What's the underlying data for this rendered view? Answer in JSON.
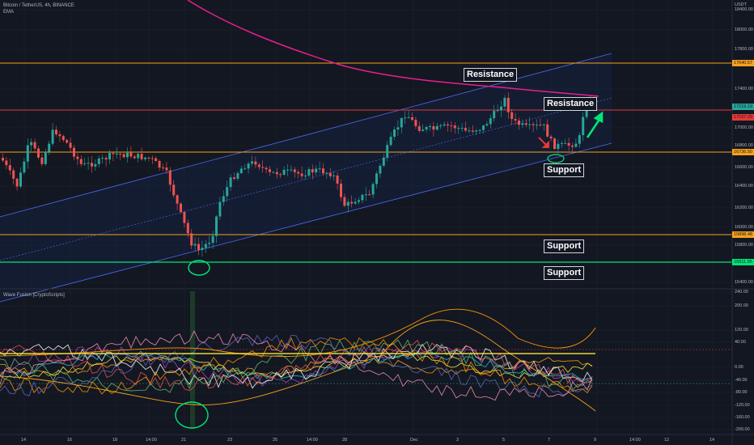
{
  "header": {
    "symbol": "Bitcoin / TetherUS, 4h, BINANCE",
    "ema_label": "EMA",
    "indicator_title": "Wave Fusion [CryptoScripts]"
  },
  "currency": "USDT",
  "annotations": {
    "resistance_top": "Resistance",
    "resistance_right": "Resistance",
    "support_right": "Support",
    "support_mid": "Support",
    "support_low": "Support"
  },
  "price_tags": [
    {
      "text": "17640.57",
      "color": "#f7a21b"
    },
    {
      "text": "17219.19",
      "color": "#26a69a"
    },
    {
      "text": "17167.29",
      "color": "#e53935"
    },
    {
      "text": "16736.50",
      "color": "#f7a21b"
    },
    {
      "text": "15898.48",
      "color": "#f7a21b"
    },
    {
      "text": "15611.95",
      "color": "#00e676"
    }
  ],
  "y_ticks_main": [
    "18400.00",
    "18000.00",
    "17800.00",
    "17400.00",
    "17000.00",
    "16800.00",
    "16600.00",
    "16400.00",
    "16200.00",
    "16000.00",
    "15800.00",
    "15400.00"
  ],
  "y_ticks_osc": [
    "240.00",
    "200.00",
    "120.00",
    "40.00",
    "0.00",
    "-40.00",
    "-80.00",
    "-120.00",
    "-160.00",
    "-200.00"
  ],
  "x_ticks": [
    "14",
    "16",
    "18",
    "14:00",
    "21",
    "23",
    "25",
    "14:00",
    "28",
    "Dec",
    "3",
    "5",
    "7",
    "9",
    "14:00",
    "12",
    "14"
  ],
  "colors": {
    "background": "#131722",
    "up": "#26a69a",
    "down": "#ef5350",
    "orange": "#f7a21b",
    "green": "#00e676",
    "ema": "#e91e8c",
    "channel": "#2962ff"
  },
  "chart_data": {
    "type": "candlestick",
    "series": [
      {
        "name": "Bitcoin / TetherUS, 4h, BINANCE"
      },
      {
        "name": "EMA"
      },
      {
        "name": "Wave Fusion [CryptoScripts]"
      }
    ],
    "horizontal_levels": [
      17640.57,
      16736.5,
      15898.48,
      15611.95
    ]
  }
}
